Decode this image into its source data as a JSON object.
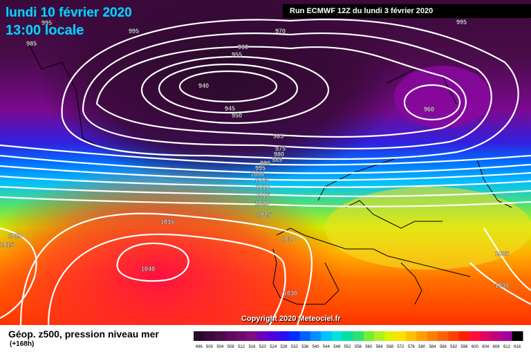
{
  "header": {
    "date": "lundi 10 février 2020",
    "time": "13:00 locale",
    "run": "Run ECMWF 12Z du lundi 3 février 2020"
  },
  "footer": {
    "title": "Géop. z500, pression niveau mer",
    "lead": "(+168h)",
    "copyright": "Copyright 2020 Meteociel.fr"
  },
  "isobar_labels": [
    "995",
    "985",
    "995",
    "970",
    "995",
    "960",
    "955",
    "940",
    "945",
    "950",
    "960",
    "965",
    "975",
    "980",
    "985",
    "990",
    "995",
    "1000",
    "1005",
    "1010",
    "1015",
    "1020",
    "1025",
    "1035",
    "1020",
    "1015",
    "1030",
    "1040",
    "1030",
    "1035",
    "1030"
  ],
  "legend": {
    "labels": [
      "496",
      "500",
      "504",
      "508",
      "512",
      "516",
      "520",
      "524",
      "528",
      "532",
      "536",
      "540",
      "544",
      "548",
      "552",
      "556",
      "560",
      "564",
      "568",
      "572",
      "576",
      "580",
      "584",
      "588",
      "592",
      "596",
      "600",
      "604",
      "608",
      "612",
      "616"
    ],
    "colors": [
      "#2a0a2a",
      "#3a0a3a",
      "#4b0b4b",
      "#5c0c5c",
      "#6d0d6d",
      "#7e0e7e",
      "#6a00c0",
      "#5000e0",
      "#2a10f0",
      "#0030ff",
      "#0060ff",
      "#0090ff",
      "#00c0ff",
      "#00e0e0",
      "#00e0a0",
      "#30e070",
      "#70f030",
      "#b0f020",
      "#e0f000",
      "#ffe000",
      "#ffc000",
      "#ffa000",
      "#ff8000",
      "#ff6000",
      "#ff4000",
      "#ff2000",
      "#ff1040",
      "#e00060",
      "#c00080",
      "#a000a0",
      "#000000"
    ]
  }
}
